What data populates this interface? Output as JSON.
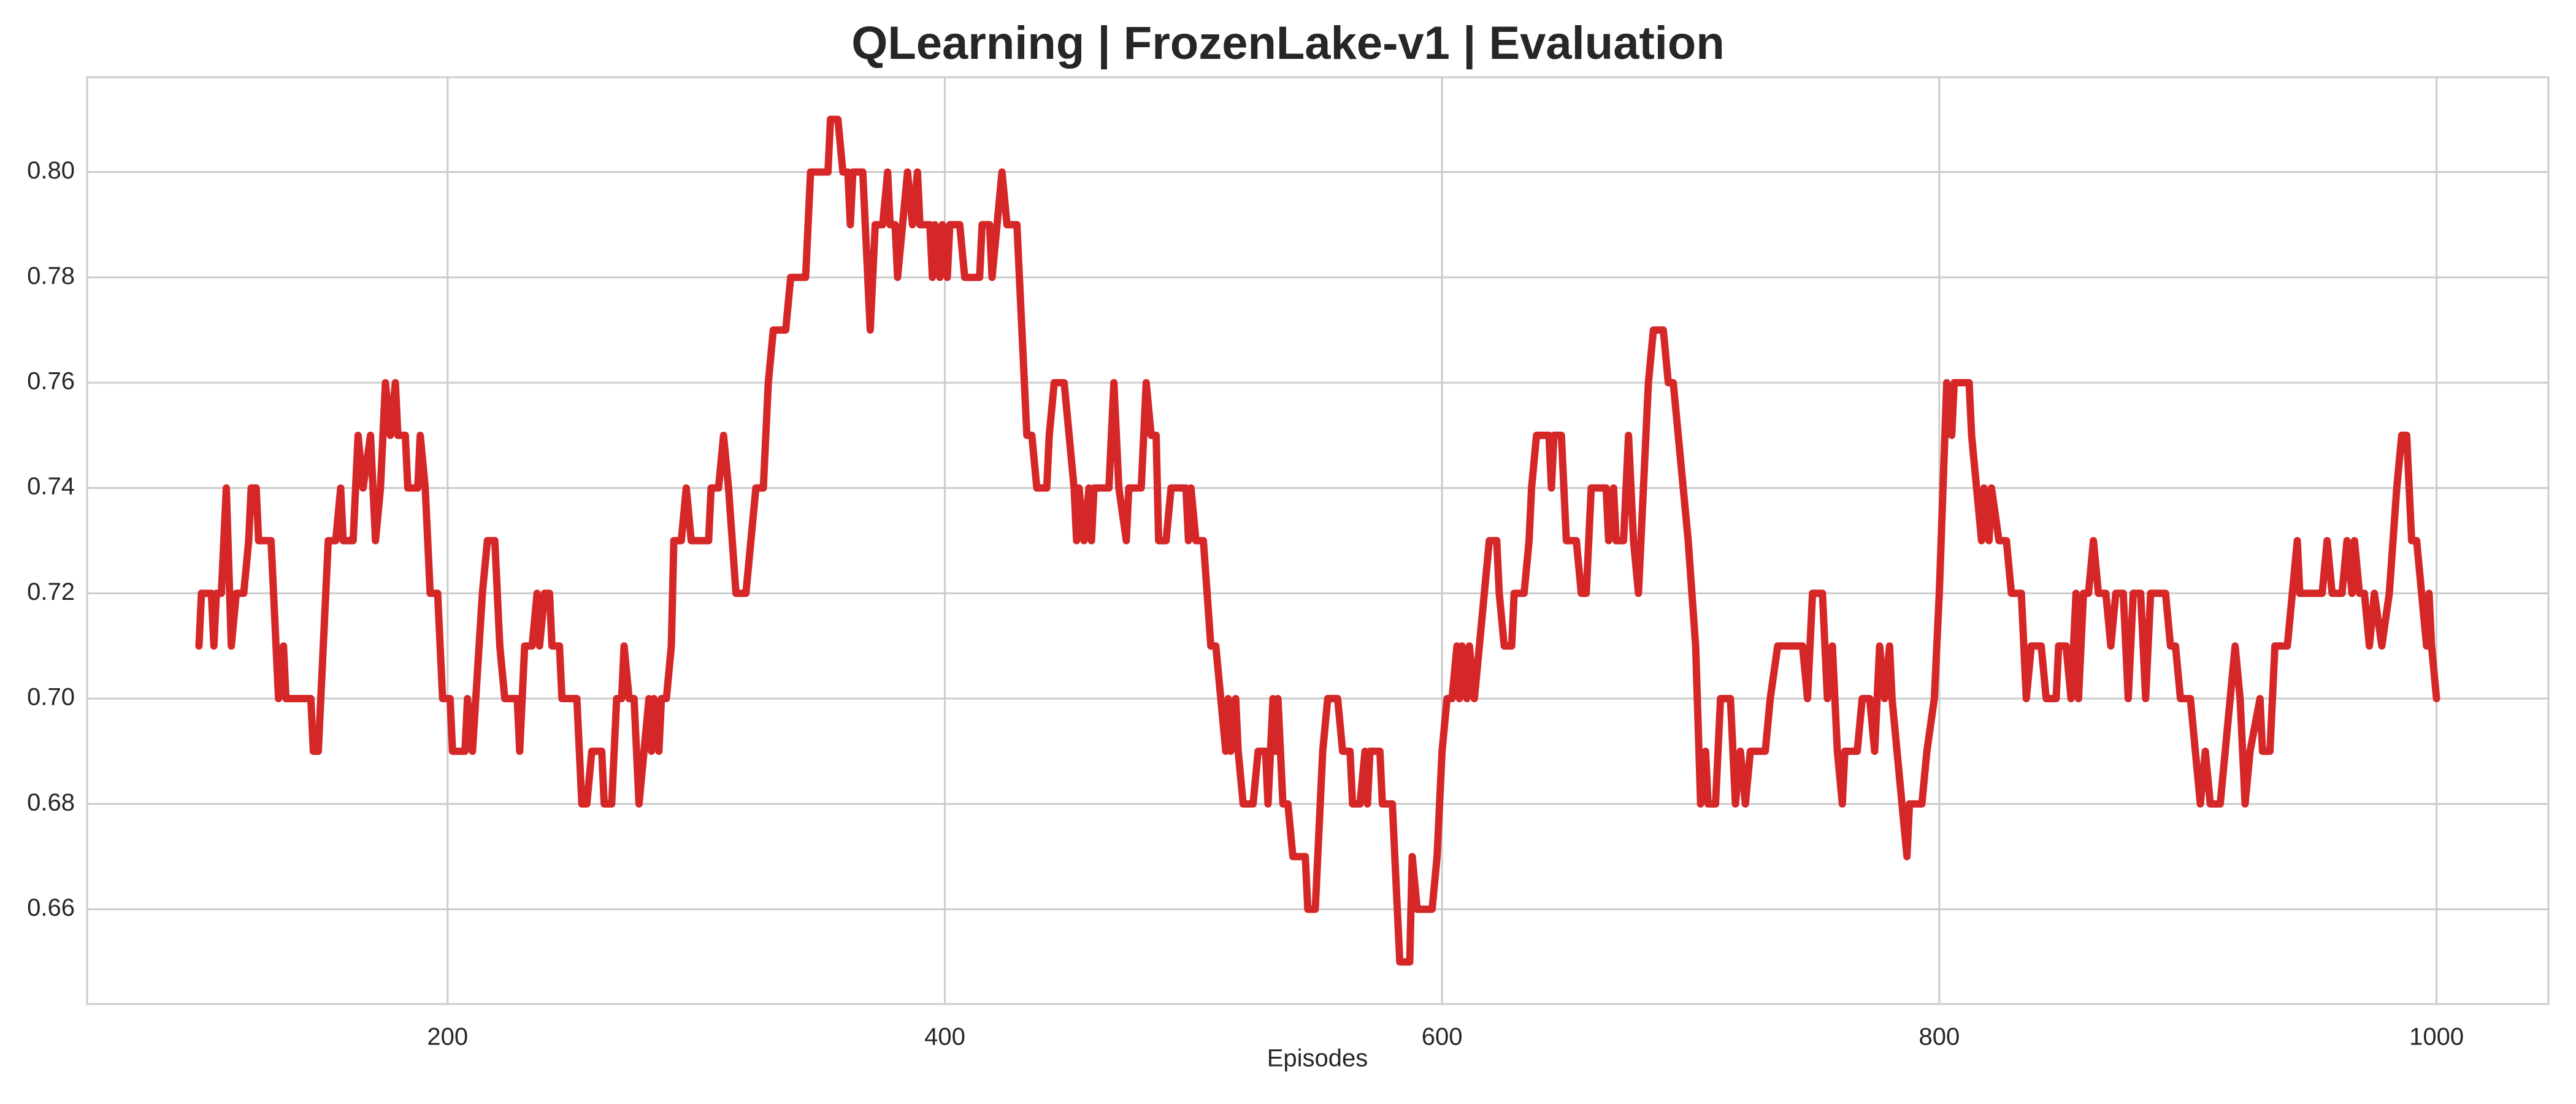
{
  "chart_data": {
    "type": "line",
    "title": "QLearning | FrozenLake-v1 | Evaluation",
    "xlabel": "Episodes",
    "x": [
      100,
      101,
      105,
      106,
      107,
      109,
      111,
      113,
      115,
      118,
      120,
      121,
      123,
      124,
      129,
      132,
      134,
      135,
      145,
      146,
      148,
      149,
      152,
      155,
      157,
      158,
      162,
      164,
      166,
      169,
      171,
      173,
      175,
      177,
      179,
      180,
      183,
      184,
      188,
      189,
      191,
      193,
      196,
      197,
      198,
      201,
      202,
      207,
      208,
      210,
      214,
      216,
      219,
      220,
      221,
      223,
      228,
      229,
      231,
      234,
      236,
      237,
      239,
      241,
      242,
      245,
      246,
      252,
      254,
      256,
      258,
      262,
      263,
      266,
      268,
      270,
      271,
      273,
      275,
      277,
      279,
      281,
      282,
      283,
      285,
      286,
      288,
      290,
      291,
      294,
      296,
      298,
      305,
      306,
      309,
      311,
      313,
      316,
      320,
      322,
      324,
      327,
      329,
      331,
      336,
      338,
      344,
      346,
      353,
      354,
      357,
      359,
      361,
      362,
      363,
      367,
      370,
      372,
      375,
      377,
      378,
      380,
      381,
      383,
      385,
      387,
      389,
      390,
      394,
      395,
      396,
      398,
      399,
      401,
      402,
      406,
      408,
      414,
      415,
      418,
      419,
      421,
      423,
      425,
      429,
      431,
      433,
      435,
      437,
      441,
      442,
      444,
      448,
      450,
      452,
      453,
      454,
      456,
      458,
      459,
      460,
      466,
      468,
      470,
      473,
      474,
      479,
      481,
      483,
      485,
      486,
      489,
      491,
      497,
      498,
      499,
      501,
      504,
      507,
      509,
      511,
      513,
      514,
      515,
      517,
      518,
      520,
      524,
      526,
      529,
      530,
      532,
      533,
      534,
      536,
      538,
      540,
      545,
      546,
      549,
      550,
      552,
      554,
      558,
      560,
      563,
      564,
      567,
      569,
      570,
      571,
      575,
      576,
      580,
      583,
      587,
      588,
      590,
      596,
      598,
      600,
      602,
      604,
      606,
      607,
      608,
      610,
      611,
      613,
      615,
      617,
      619,
      622,
      623,
      625,
      628,
      629,
      633,
      635,
      636,
      638,
      643,
      644,
      645,
      648,
      650,
      654,
      656,
      658,
      660,
      666,
      667,
      669,
      670,
      673,
      675,
      677,
      679,
      680,
      683,
      685,
      689,
      691,
      693,
      695,
      699,
      702,
      704,
      706,
      707,
      710,
      712,
      716,
      718,
      720,
      722,
      724,
      730,
      732,
      735,
      745,
      747,
      749,
      753,
      755,
      757,
      759,
      761,
      762,
      767,
      769,
      772,
      774,
      776,
      778,
      780,
      781,
      783,
      785,
      787,
      788,
      793,
      795,
      798,
      800,
      803,
      805,
      806,
      812,
      813,
      815,
      817,
      818,
      820,
      821,
      824,
      827,
      829,
      833,
      835,
      837,
      841,
      843,
      847,
      848,
      851,
      853,
      855,
      856,
      858,
      860,
      862,
      864,
      867,
      869,
      871,
      874,
      876,
      878,
      881,
      883,
      885,
      891,
      893,
      895,
      897,
      901,
      903,
      905,
      907,
      909,
      913,
      915,
      917,
      919,
      921,
      923,
      925,
      929,
      930,
      933,
      935,
      940,
      942,
      944,
      945,
      954,
      956,
      958,
      962,
      964,
      966,
      967,
      969,
      971,
      973,
      975,
      978,
      981,
      984,
      986,
      988,
      990,
      992,
      994,
      996,
      997,
      998,
      1000
    ],
    "series": [
      {
        "color": "#d62728",
        "values": [
          0.71,
          0.72,
          0.72,
          0.71,
          0.72,
          0.72,
          0.74,
          0.71,
          0.72,
          0.72,
          0.73,
          0.74,
          0.74,
          0.73,
          0.73,
          0.7,
          0.71,
          0.7,
          0.7,
          0.69,
          0.69,
          0.7,
          0.73,
          0.73,
          0.74,
          0.73,
          0.73,
          0.75,
          0.74,
          0.75,
          0.73,
          0.74,
          0.76,
          0.75,
          0.76,
          0.75,
          0.75,
          0.74,
          0.74,
          0.75,
          0.74,
          0.72,
          0.72,
          0.71,
          0.7,
          0.7,
          0.69,
          0.69,
          0.7,
          0.69,
          0.72,
          0.73,
          0.73,
          0.72,
          0.71,
          0.7,
          0.7,
          0.69,
          0.71,
          0.71,
          0.72,
          0.71,
          0.72,
          0.72,
          0.71,
          0.71,
          0.7,
          0.7,
          0.68,
          0.68,
          0.69,
          0.69,
          0.68,
          0.68,
          0.7,
          0.7,
          0.71,
          0.7,
          0.7,
          0.68,
          0.69,
          0.7,
          0.69,
          0.7,
          0.69,
          0.7,
          0.7,
          0.71,
          0.73,
          0.73,
          0.74,
          0.73,
          0.73,
          0.74,
          0.74,
          0.75,
          0.74,
          0.72,
          0.72,
          0.73,
          0.74,
          0.74,
          0.76,
          0.77,
          0.77,
          0.78,
          0.78,
          0.8,
          0.8,
          0.81,
          0.81,
          0.8,
          0.8,
          0.79,
          0.8,
          0.8,
          0.77,
          0.79,
          0.79,
          0.8,
          0.79,
          0.79,
          0.78,
          0.79,
          0.8,
          0.79,
          0.8,
          0.79,
          0.79,
          0.78,
          0.79,
          0.78,
          0.79,
          0.78,
          0.79,
          0.79,
          0.78,
          0.78,
          0.79,
          0.79,
          0.78,
          0.79,
          0.8,
          0.79,
          0.79,
          0.77,
          0.75,
          0.75,
          0.74,
          0.74,
          0.75,
          0.76,
          0.76,
          0.75,
          0.74,
          0.73,
          0.74,
          0.73,
          0.74,
          0.73,
          0.74,
          0.74,
          0.76,
          0.74,
          0.73,
          0.74,
          0.74,
          0.76,
          0.75,
          0.75,
          0.73,
          0.73,
          0.74,
          0.74,
          0.73,
          0.74,
          0.73,
          0.73,
          0.71,
          0.71,
          0.7,
          0.69,
          0.7,
          0.69,
          0.7,
          0.69,
          0.68,
          0.68,
          0.69,
          0.69,
          0.68,
          0.7,
          0.69,
          0.7,
          0.68,
          0.68,
          0.67,
          0.67,
          0.66,
          0.66,
          0.67,
          0.69,
          0.7,
          0.7,
          0.69,
          0.69,
          0.68,
          0.68,
          0.69,
          0.68,
          0.69,
          0.69,
          0.68,
          0.68,
          0.65,
          0.65,
          0.67,
          0.66,
          0.66,
          0.67,
          0.69,
          0.7,
          0.7,
          0.71,
          0.7,
          0.71,
          0.7,
          0.71,
          0.7,
          0.71,
          0.72,
          0.73,
          0.73,
          0.72,
          0.71,
          0.71,
          0.72,
          0.72,
          0.73,
          0.74,
          0.75,
          0.75,
          0.74,
          0.75,
          0.75,
          0.73,
          0.73,
          0.72,
          0.72,
          0.74,
          0.74,
          0.73,
          0.74,
          0.73,
          0.73,
          0.75,
          0.73,
          0.72,
          0.73,
          0.76,
          0.77,
          0.77,
          0.76,
          0.76,
          0.75,
          0.73,
          0.71,
          0.68,
          0.69,
          0.68,
          0.68,
          0.7,
          0.7,
          0.68,
          0.69,
          0.68,
          0.69,
          0.69,
          0.7,
          0.71,
          0.71,
          0.7,
          0.72,
          0.72,
          0.7,
          0.71,
          0.69,
          0.68,
          0.69,
          0.69,
          0.7,
          0.7,
          0.69,
          0.71,
          0.7,
          0.71,
          0.7,
          0.69,
          0.68,
          0.67,
          0.68,
          0.68,
          0.69,
          0.7,
          0.72,
          0.76,
          0.75,
          0.76,
          0.76,
          0.75,
          0.74,
          0.73,
          0.74,
          0.73,
          0.74,
          0.73,
          0.73,
          0.72,
          0.72,
          0.7,
          0.71,
          0.71,
          0.7,
          0.7,
          0.71,
          0.71,
          0.7,
          0.72,
          0.7,
          0.72,
          0.72,
          0.73,
          0.72,
          0.72,
          0.71,
          0.72,
          0.72,
          0.7,
          0.72,
          0.72,
          0.7,
          0.72,
          0.72,
          0.71,
          0.71,
          0.7,
          0.7,
          0.69,
          0.68,
          0.69,
          0.68,
          0.68,
          0.69,
          0.7,
          0.71,
          0.7,
          0.68,
          0.69,
          0.7,
          0.69,
          0.69,
          0.71,
          0.71,
          0.72,
          0.73,
          0.72,
          0.72,
          0.73,
          0.72,
          0.72,
          0.73,
          0.72,
          0.73,
          0.72,
          0.72,
          0.71,
          0.72,
          0.71,
          0.72,
          0.74,
          0.75,
          0.75,
          0.73,
          0.73,
          0.72,
          0.71,
          0.72,
          0.71,
          0.7
        ]
      }
    ],
    "xlim": [
      55,
      1045
    ],
    "xticks": [
      200,
      400,
      600,
      800,
      1000
    ],
    "ylim": [
      0.642,
      0.818
    ],
    "yticks": [
      0.66,
      0.68,
      {
        "value": 0.7,
        "label": "0.70"
      },
      0.72,
      0.74,
      0.76,
      0.78,
      {
        "value": 0.8,
        "label": "0.80"
      }
    ],
    "grid": true
  }
}
